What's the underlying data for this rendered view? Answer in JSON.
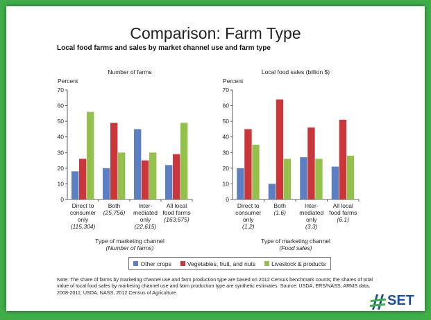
{
  "slide": {
    "title": "Comparison:  Farm Type",
    "subtitle": "Local food farms and sales by market channel use and farm type",
    "note": "Note: The share  of farms by marketing channel use and farm production type are based on 2012 Census benchmark counts; the shares of total value of local food sales by marketing channel use and farm production type are synthetic estimates. Source: USDA, ERS/NASS, ARMS data, 2008-2011; USDA, NASS, 2012 Census of Agriculture.",
    "logo_text": "SET"
  },
  "colors": {
    "Other crops": "#5b7fc0",
    "Vegetables, fruit, and nuts": "#c9373a",
    "Livestock & products": "#93c14c"
  },
  "legend": [
    "Other crops",
    "Vegetables, fruit, and nuts",
    "Livestock & products"
  ],
  "chart_data": [
    {
      "type": "bar",
      "title": "Number of farms",
      "ylabel": "Percent",
      "ylim": [
        0,
        70
      ],
      "yticks": [
        0,
        10,
        20,
        30,
        40,
        50,
        60,
        70
      ],
      "categories": [
        [
          "Direct to",
          "consumer",
          "only"
        ],
        [
          "Both"
        ],
        [
          "Inter-",
          "mediated",
          "only"
        ],
        [
          "All local",
          "food farms"
        ]
      ],
      "category_counts": [
        "(115,304)",
        "(25,756)",
        "(22,615)",
        "(163,675)"
      ],
      "count_line_index": [
        3,
        1,
        3,
        2
      ],
      "xlabel": "Type of marketing channel",
      "xlabel_sub": "(Number of farms)",
      "series": [
        {
          "name": "Other crops",
          "values": [
            18,
            20,
            45,
            22
          ]
        },
        {
          "name": "Vegetables, fruit, and nuts",
          "values": [
            26,
            49,
            25,
            29
          ]
        },
        {
          "name": "Livestock & products",
          "values": [
            56,
            30,
            30,
            49
          ]
        }
      ]
    },
    {
      "type": "bar",
      "title": "Local food sales (billion $)",
      "ylabel": "Percent",
      "ylim": [
        0,
        70
      ],
      "yticks": [
        0,
        10,
        20,
        30,
        40,
        50,
        60,
        70
      ],
      "categories": [
        [
          "Direct to",
          "consumer",
          "only"
        ],
        [
          "Both"
        ],
        [
          "Inter-",
          "mediated",
          "only"
        ],
        [
          "All local",
          "food farms"
        ]
      ],
      "category_counts": [
        "(1.2)",
        "(1.6)",
        "(3.3)",
        "(6.1)"
      ],
      "count_line_index": [
        3,
        1,
        3,
        2
      ],
      "xlabel": "Type of marketing channel",
      "xlabel_sub": "(Food sales)",
      "series": [
        {
          "name": "Other crops",
          "values": [
            20,
            10,
            27,
            21
          ]
        },
        {
          "name": "Vegetables, fruit, and nuts",
          "values": [
            45,
            64,
            46,
            51
          ]
        },
        {
          "name": "Livestock & products",
          "values": [
            35,
            26,
            26,
            28
          ]
        }
      ]
    }
  ]
}
